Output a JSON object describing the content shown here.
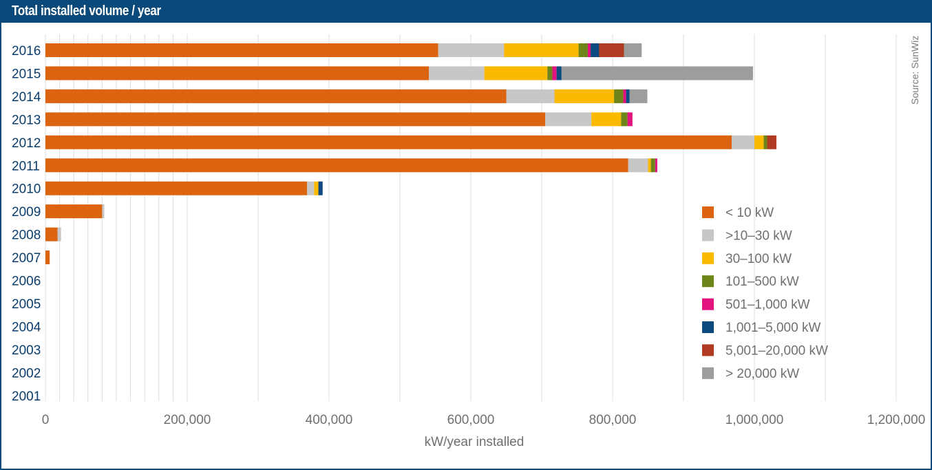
{
  "header": {
    "title": "Total installed volume / year"
  },
  "source": "Source:  SunWiz",
  "chart_data": {
    "type": "bar",
    "orientation": "horizontal",
    "stacked": true,
    "title": "Total installed volume / year",
    "xlabel": "kW/year installed",
    "ylabel": "",
    "xlim": [
      0,
      1200000
    ],
    "xticks": [
      0,
      200000,
      400000,
      600000,
      800000,
      1000000,
      1200000
    ],
    "xtick_labels": [
      "0",
      "200,000",
      "400,000",
      "600,000",
      "800,000",
      "1,000,000",
      "1,200,000"
    ],
    "minor_gridlines": [
      20000,
      40000,
      60000,
      80000,
      100000,
      120000,
      140000,
      160000,
      180000,
      300000,
      500000,
      700000,
      900000,
      1100000
    ],
    "grid": true,
    "legend_position": "right",
    "categories": [
      "2016",
      "2015",
      "2014",
      "2013",
      "2012",
      "2011",
      "2010",
      "2009",
      "2008",
      "2007",
      "2006",
      "2005",
      "2004",
      "2003",
      "2002",
      "2001"
    ],
    "series": [
      {
        "name": "< 10 kW",
        "color": "#dc6410",
        "values": [
          554000,
          541000,
          650000,
          705000,
          968000,
          822000,
          369000,
          80000,
          17000,
          6000,
          0,
          0,
          0,
          0,
          0,
          0
        ]
      },
      {
        "name": ">10–30 kW",
        "color": "#c6c7c6",
        "values": [
          93000,
          78000,
          68000,
          65000,
          32000,
          28000,
          10000,
          3000,
          5000,
          0,
          0,
          0,
          0,
          0,
          0,
          0
        ]
      },
      {
        "name": "30–100 kW",
        "color": "#fbb900",
        "values": [
          105000,
          89000,
          84000,
          42000,
          13000,
          4000,
          6000,
          0,
          0,
          0,
          0,
          0,
          0,
          0,
          0,
          0
        ]
      },
      {
        "name": "101–500 kW",
        "color": "#6e8519",
        "values": [
          13000,
          7000,
          13000,
          9000,
          5000,
          6000,
          0,
          0,
          0,
          0,
          0,
          0,
          0,
          0,
          0,
          0
        ]
      },
      {
        "name": "501–1,000 kW",
        "color": "#e2127f",
        "values": [
          4000,
          6000,
          4000,
          7000,
          0,
          3000,
          0,
          0,
          0,
          0,
          0,
          0,
          0,
          0,
          0,
          0
        ]
      },
      {
        "name": "1,001–5,000 kW",
        "color": "#0c4a80",
        "values": [
          12000,
          7000,
          5000,
          0,
          0,
          0,
          6000,
          0,
          0,
          0,
          0,
          0,
          0,
          0,
          0,
          0
        ]
      },
      {
        "name": "5,001–20,000 kW",
        "color": "#b03a22",
        "values": [
          35000,
          0,
          0,
          0,
          13000,
          0,
          0,
          0,
          0,
          0,
          0,
          0,
          0,
          0,
          0,
          0
        ]
      },
      {
        "name": "> 20,000 kW",
        "color": "#9d9d9c",
        "values": [
          25000,
          270000,
          25000,
          0,
          0,
          0,
          0,
          0,
          0,
          0,
          0,
          0,
          0,
          0,
          0,
          0
        ]
      }
    ]
  }
}
